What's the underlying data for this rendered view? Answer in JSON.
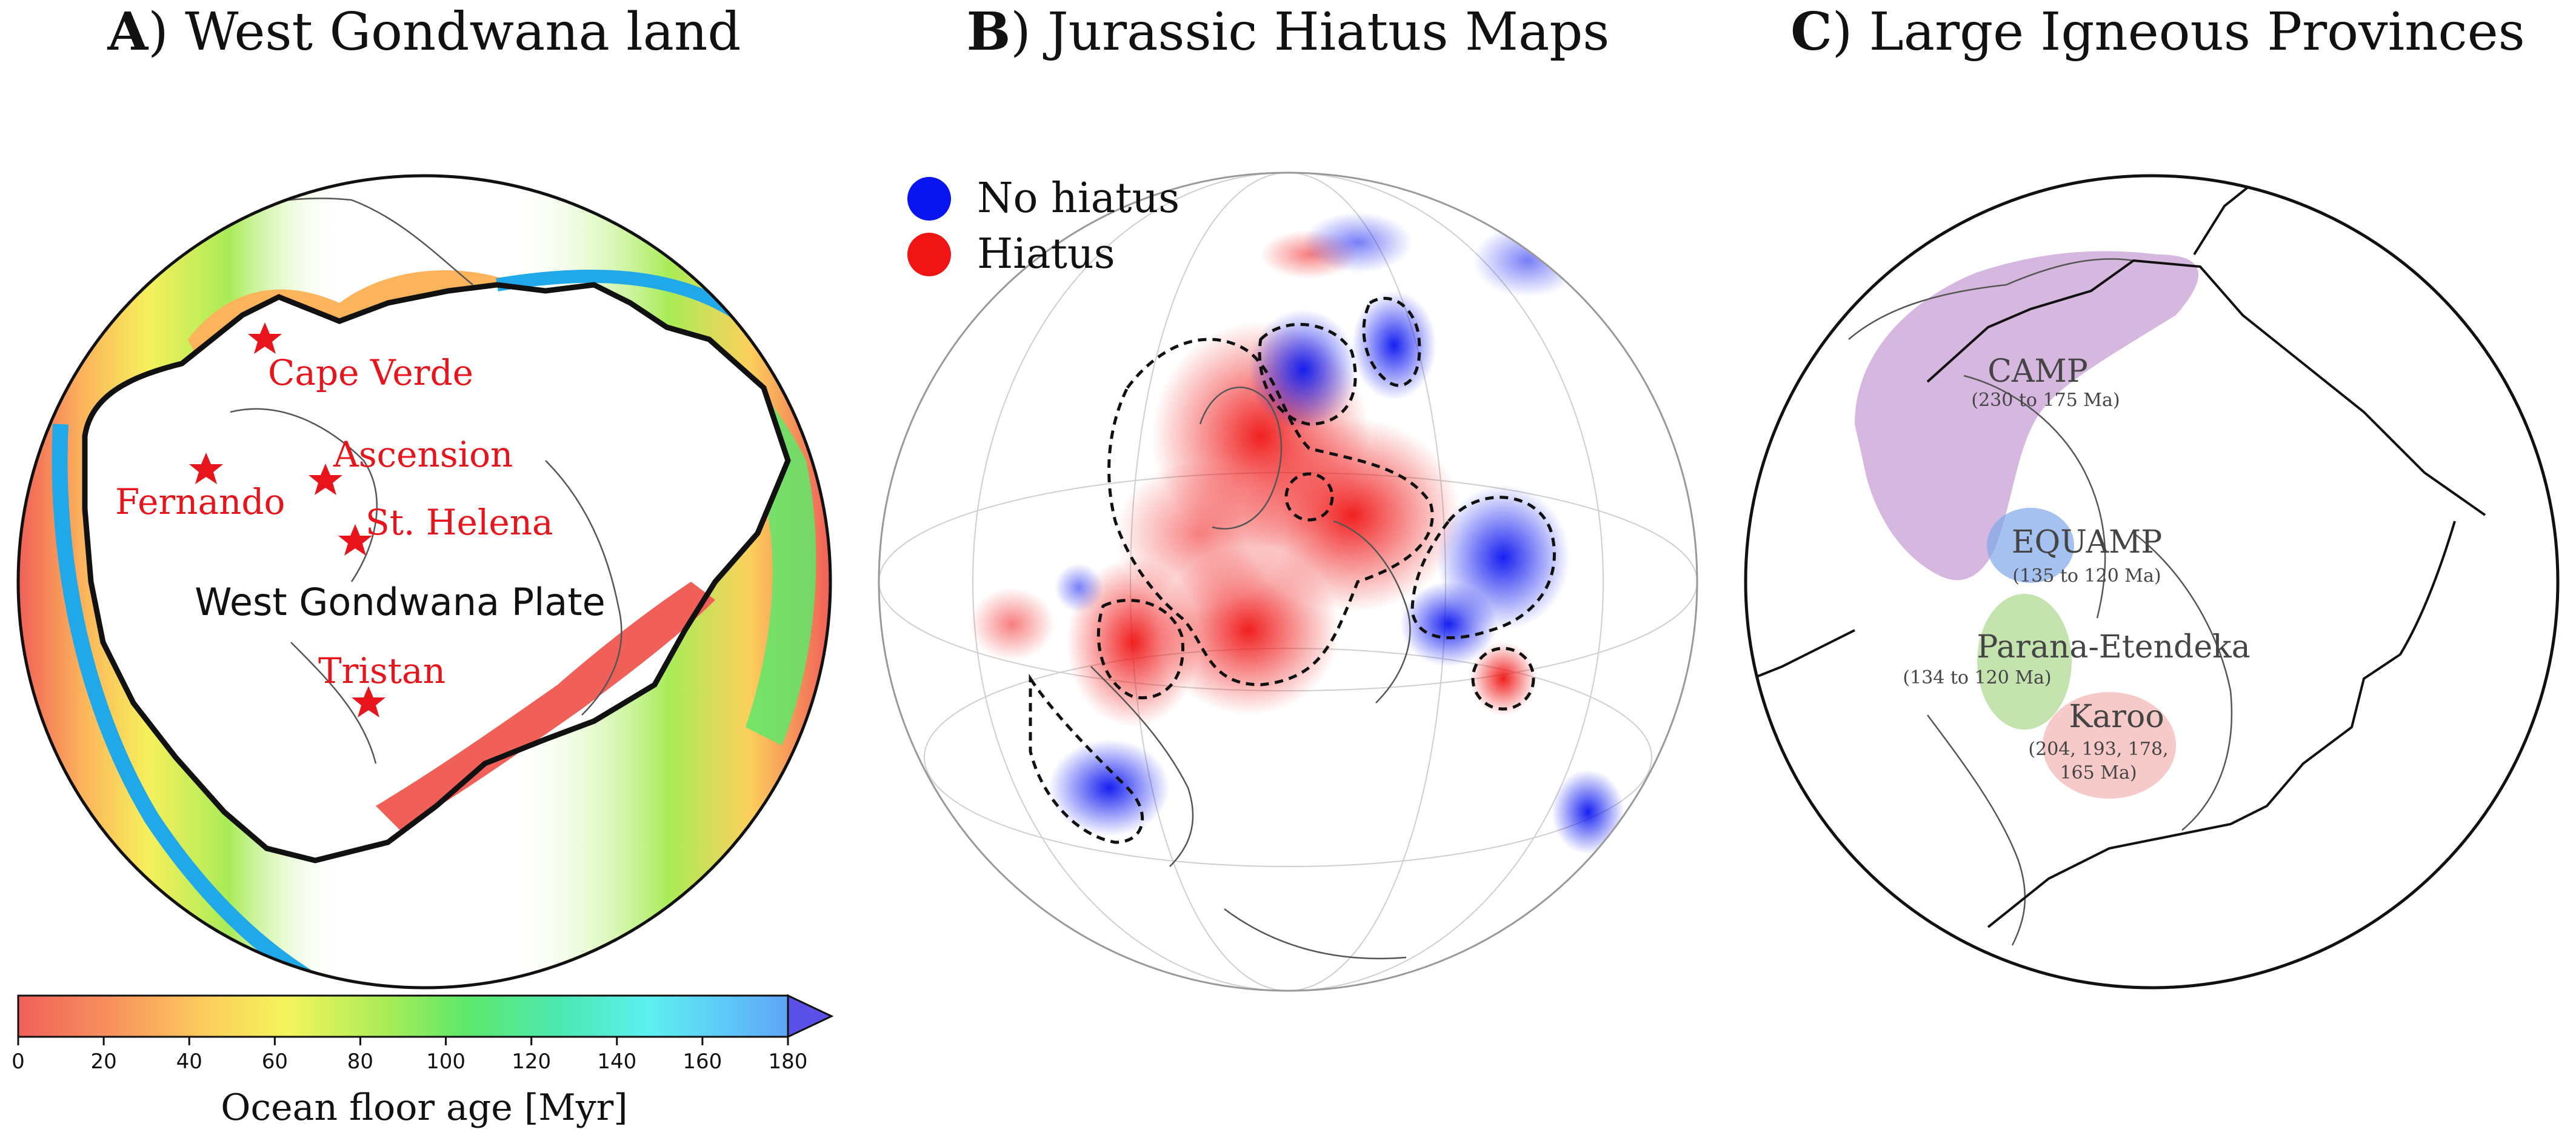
{
  "panels": {
    "a": {
      "letter": "A",
      "title": ") West Gondwana land"
    },
    "b": {
      "letter": "B",
      "title": ") Jurassic Hiatus Maps"
    },
    "c": {
      "letter": "C",
      "title": ") Large Igneous Provinces"
    }
  },
  "panel_a": {
    "plate_label": "West Gondwana Plate",
    "hotspots": [
      {
        "name": "Cape Verde"
      },
      {
        "name": "Ascension"
      },
      {
        "name": "Fernando"
      },
      {
        "name": "St. Helena"
      },
      {
        "name": "Tristan"
      }
    ],
    "hotspot_color": "#e8141c"
  },
  "panel_b": {
    "legend": [
      {
        "label": "No hiatus",
        "color": "#0a14f0"
      },
      {
        "label": "Hiatus",
        "color": "#f01414"
      }
    ]
  },
  "panel_c": {
    "provinces": [
      {
        "name": "CAMP",
        "age": "(230 to 175 Ma)",
        "color": "#b47cc4"
      },
      {
        "name": "EQUAMP",
        "age": "(135 to 120 Ma)",
        "color": "#7ea6e8"
      },
      {
        "name": "Parana-Etendeka",
        "age": "(134 to 120 Ma)",
        "color": "#9ed07a"
      },
      {
        "name": "Karoo",
        "age_lines": [
          "(204, 193, 178,",
          "165 Ma)"
        ],
        "color": "#f2a6a6"
      }
    ]
  },
  "colorbar": {
    "label": "Ocean floor age [Myr]",
    "ticks": [
      "0",
      "20",
      "40",
      "60",
      "80",
      "100",
      "120",
      "140",
      "160",
      "180"
    ],
    "min": 0,
    "max": 180,
    "extend": "max"
  }
}
